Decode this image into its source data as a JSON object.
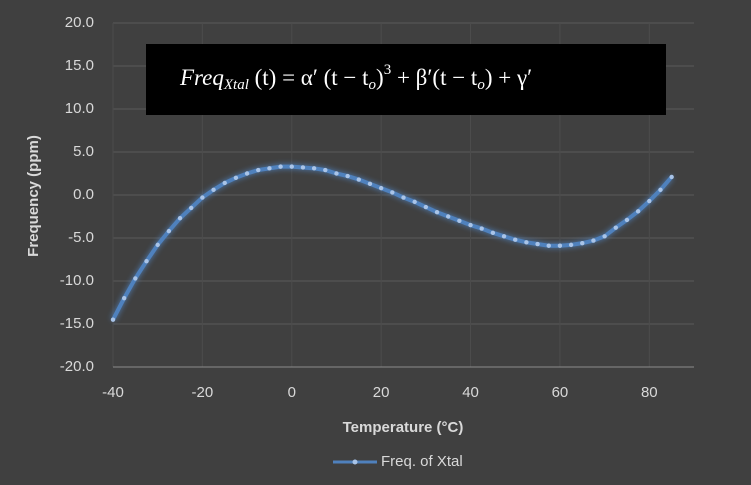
{
  "chart_data": {
    "type": "line",
    "annotation": [
      "Freq",
      "Xtal",
      " (t) =  α′ (t − t",
      "o",
      ")",
      "3",
      " + β′(t − t",
      "o",
      ") + γ′"
    ],
    "xlabel": "Temperature (°C)",
    "ylabel": "Frequency (ppm)",
    "x": [
      -40,
      -37.5,
      -35,
      -32.5,
      -30,
      -27.5,
      -25,
      -22.5,
      -20,
      -17.5,
      -15,
      -12.5,
      -10,
      -7.5,
      -5,
      -2.5,
      0,
      2.5,
      5,
      7.5,
      10,
      12.5,
      15,
      17.5,
      20,
      22.5,
      25,
      27.5,
      30,
      32.5,
      35,
      37.5,
      40,
      42.5,
      45,
      47.5,
      50,
      52.5,
      55,
      57.5,
      60,
      62.5,
      65,
      67.5,
      70,
      72.5,
      75,
      77.5,
      80,
      82.5,
      85
    ],
    "series": [
      {
        "name": "Freq. of Xtal",
        "color": "#4f81bd",
        "values": [
          -14.5,
          -12.0,
          -9.7,
          -7.7,
          -5.8,
          -4.2,
          -2.7,
          -1.5,
          -0.3,
          0.6,
          1.4,
          2.0,
          2.5,
          2.9,
          3.1,
          3.3,
          3.3,
          3.2,
          3.1,
          2.9,
          2.5,
          2.2,
          1.8,
          1.3,
          0.8,
          0.3,
          -0.3,
          -0.8,
          -1.4,
          -2.0,
          -2.5,
          -3.0,
          -3.5,
          -3.9,
          -4.4,
          -4.8,
          -5.2,
          -5.5,
          -5.7,
          -5.9,
          -5.9,
          -5.8,
          -5.6,
          -5.3,
          -4.8,
          -3.8,
          -2.9,
          -1.9,
          -0.7,
          0.6,
          2.1
        ]
      }
    ],
    "xlim": [
      -40,
      90
    ],
    "xticks": [
      -40,
      -20,
      0,
      20,
      40,
      60,
      80
    ],
    "ylim": [
      -20,
      20
    ],
    "yticks": [
      {
        "value": -20,
        "label": "-20.0"
      },
      {
        "value": -15,
        "label": "-15.0"
      },
      {
        "value": -10,
        "label": "-10.0"
      },
      {
        "value": -5,
        "label": "-5.0"
      },
      {
        "value": 0,
        "label": "0.0"
      },
      {
        "value": 5,
        "label": "5.0"
      },
      {
        "value": 10,
        "label": "10.0"
      },
      {
        "value": 15,
        "label": "15.0"
      },
      {
        "value": 20,
        "label": "20.0"
      }
    ],
    "grid": true,
    "legend": "bottom"
  }
}
